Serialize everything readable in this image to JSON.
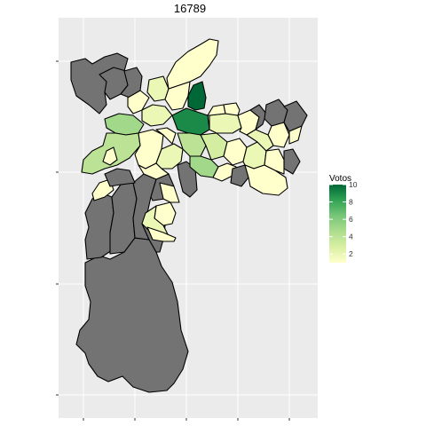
{
  "title": "16789",
  "legend": {
    "title": "Votos",
    "ticks": [
      2,
      4,
      6,
      8,
      10
    ],
    "range": [
      1,
      10
    ],
    "colors": [
      "#ffffcc",
      "#d9f0a3",
      "#addd8e",
      "#78c679",
      "#31a354",
      "#006837"
    ]
  },
  "colors": {
    "panel": "#ebebeb",
    "grid": "#ffffff",
    "na_fill": "#737373",
    "stroke": "#000000"
  },
  "chart_data": {
    "type": "choropleth",
    "title": "16789",
    "fill_variable": "Votos",
    "legend_range": [
      1,
      10
    ],
    "legend_ticks": [
      2,
      4,
      6,
      8,
      10
    ],
    "missing_color": "#737373",
    "axis_tick_labels_visible": false,
    "grid": true
  }
}
